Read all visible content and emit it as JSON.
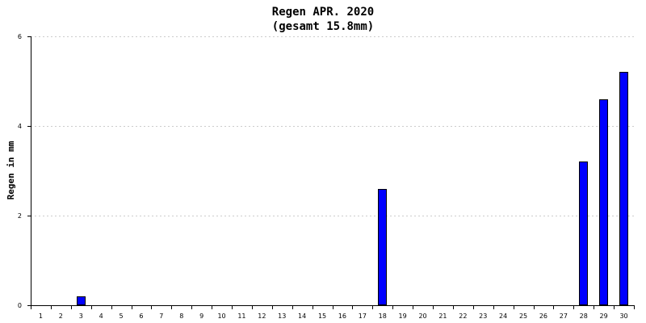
{
  "chart_data": {
    "type": "bar",
    "title": "Regen APR. 2020",
    "subtitle": "(gesamt 15.8mm)",
    "ylabel": "Regen in mm",
    "xlabel": "",
    "ylim": [
      0,
      6
    ],
    "yticks": [
      0,
      2,
      4,
      6
    ],
    "grid": true,
    "legend": "none",
    "categories": [
      "1",
      "2",
      "3",
      "4",
      "5",
      "6",
      "7",
      "8",
      "9",
      "10",
      "11",
      "12",
      "13",
      "14",
      "15",
      "16",
      "17",
      "18",
      "19",
      "20",
      "21",
      "22",
      "23",
      "24",
      "25",
      "26",
      "27",
      "28",
      "29",
      "30"
    ],
    "values": [
      0,
      0,
      0.2,
      0,
      0,
      0,
      0,
      0,
      0,
      0,
      0,
      0,
      0,
      0,
      0,
      0,
      0,
      2.6,
      0,
      0,
      0,
      0,
      0,
      0,
      0,
      0,
      0,
      3.2,
      4.6,
      5.2
    ],
    "colors": {
      "bar_fill": "#0000ff",
      "bar_stroke": "#000000",
      "grid": "#cccccc",
      "axis": "#000000"
    }
  }
}
